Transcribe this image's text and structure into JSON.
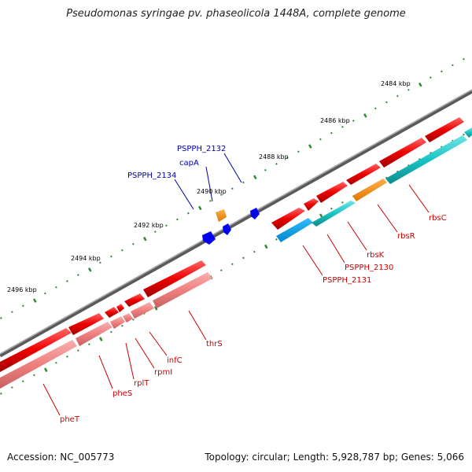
{
  "title": "Pseudomonas syringae pv. phaseolicola 1448A, complete genome",
  "footer": {
    "accession": "Accession: NC_005773",
    "topology": "Topology: circular; Length: 5,928,787 bp; Genes: 5,066"
  },
  "colors": {
    "forward_gene": "#ee0000",
    "reverse_gene": "#f08080",
    "reverse_gene_cyan": "#19c4c4",
    "highlight_gene": "#ff8c00",
    "blue_feature": "#0000ee",
    "backbone": "#808080",
    "tick": "#2e8b2e",
    "gene_label": "#cc0000",
    "blue_label": "#0000aa"
  },
  "scale": {
    "labels": [
      "2484 kbp",
      "2486 kbp",
      "2488 kbp",
      "2490 kbp",
      "2492 kbp",
      "2494 kbp",
      "2496 kbp"
    ]
  },
  "gene_labels": {
    "rbsC": "rbsC",
    "rbsR": "rbsR",
    "rbsK": "rbsK",
    "PSPPH_2130": "PSPPH_2130",
    "PSPPH_2131": "PSPPH_2131",
    "thrS": "thrS",
    "infC": "infC",
    "rpmI": "rpmI",
    "rplT": "rplT",
    "pheS": "pheS",
    "pheT": "pheT",
    "PSPPH_2132": "PSPPH_2132",
    "capA": "capA",
    "PSPPH_2134": "PSPPH_2134"
  }
}
